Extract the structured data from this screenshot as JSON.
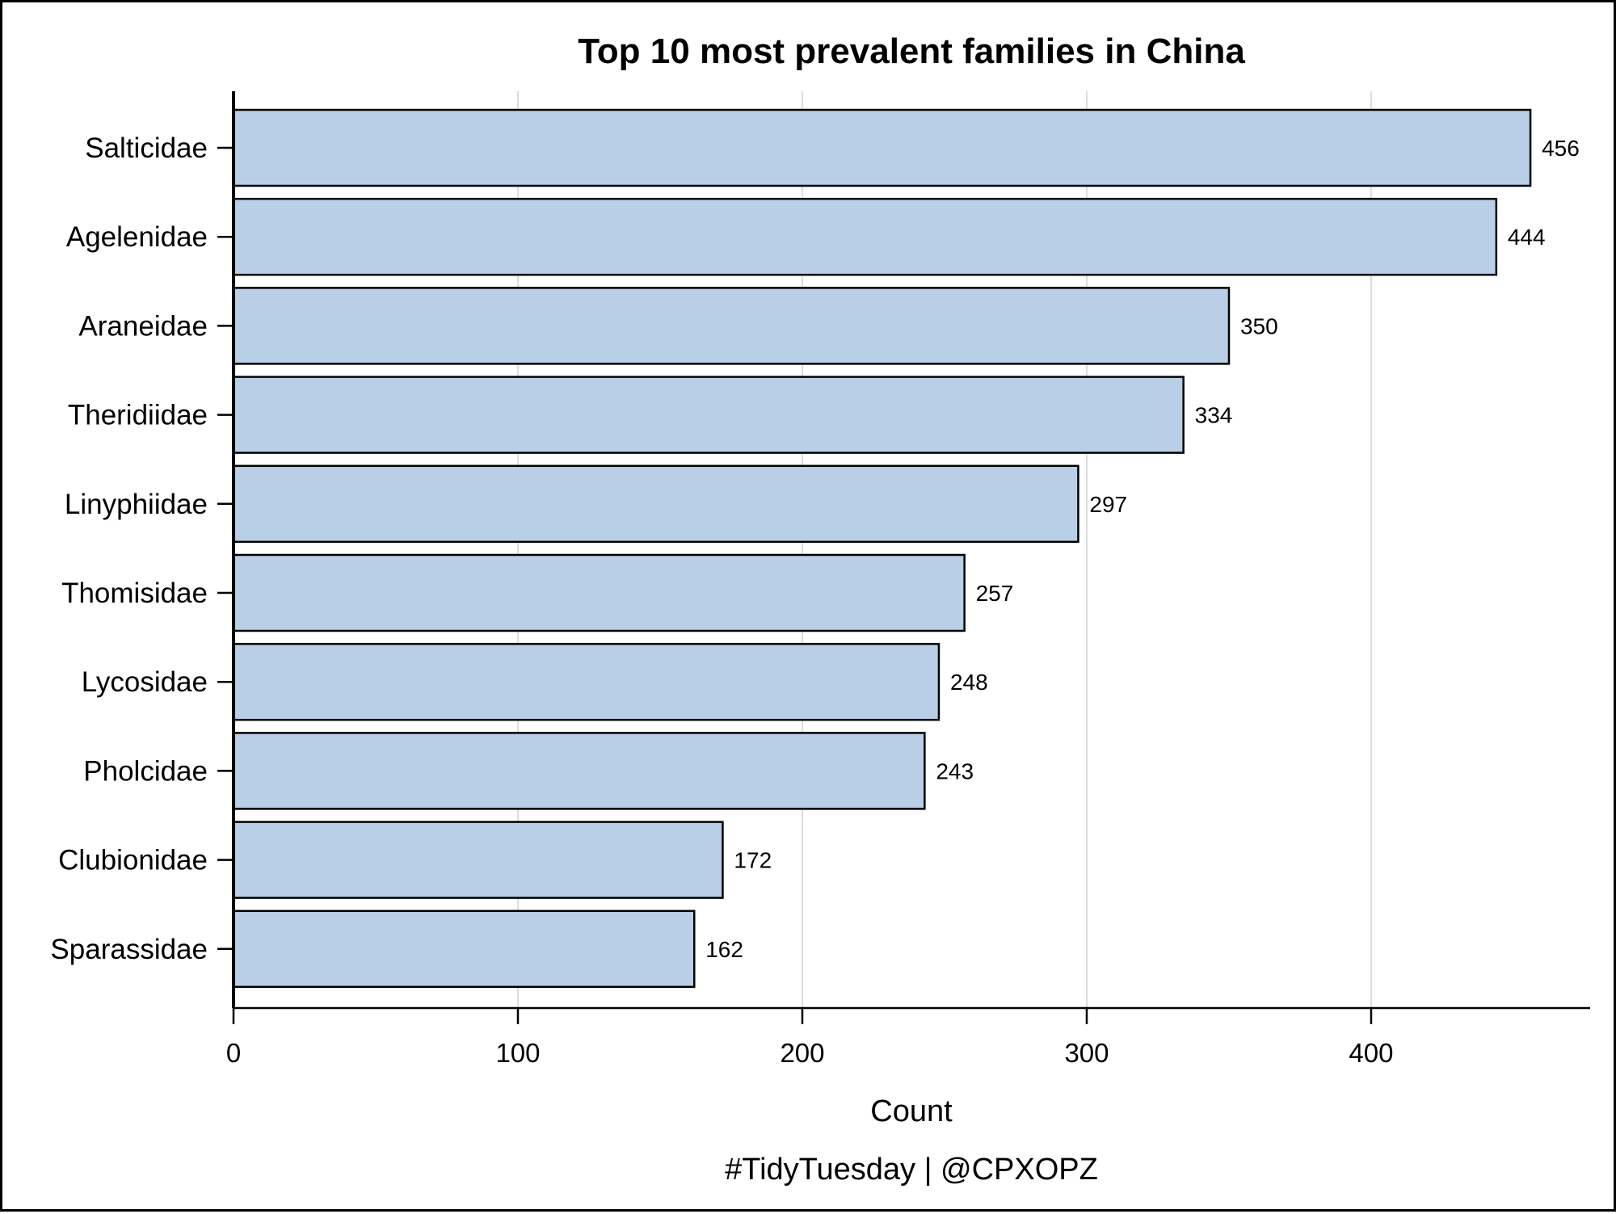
{
  "chart_data": {
    "type": "bar",
    "orientation": "horizontal",
    "title": "Top 10 most prevalent families in China",
    "xlabel": "Count",
    "ylabel": "",
    "caption": "#TidyTuesday | @CPXOPZ",
    "categories": [
      "Salticidae",
      "Agelenidae",
      "Araneidae",
      "Theridiidae",
      "Linyphiidae",
      "Thomisidae",
      "Lycosidae",
      "Pholcidae",
      "Clubionidae",
      "Sparassidae"
    ],
    "values": [
      456,
      444,
      350,
      334,
      297,
      257,
      248,
      243,
      172,
      162
    ],
    "data_labels": [
      "456",
      "444",
      "350",
      "334",
      "297",
      "257",
      "248",
      "243",
      "172",
      "162"
    ],
    "xlim": [
      0,
      477
    ],
    "x_ticks": [
      0,
      100,
      200,
      300,
      400
    ],
    "x_tick_labels": [
      "0",
      "100",
      "200",
      "300",
      "400"
    ],
    "grid": "vertical major gridlines",
    "legend": "none",
    "colors": {
      "bar_fill": "#b9cfe7",
      "bar_stroke": "#000000",
      "grid": "#dddddd",
      "axis": "#000000",
      "background": "#ffffff"
    }
  }
}
